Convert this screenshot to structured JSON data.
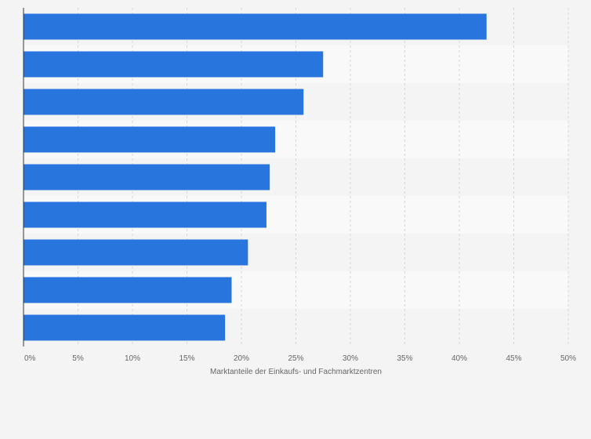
{
  "chart_data": {
    "type": "bar",
    "orientation": "horizontal",
    "categories": [
      "",
      "",
      "",
      "",
      "",
      "",
      "",
      "",
      ""
    ],
    "values": [
      42.5,
      27.5,
      25.7,
      23.1,
      22.6,
      22.3,
      20.6,
      19.1,
      18.5
    ],
    "xlabel": "Marktanteile der Einkaufs- und Fachmarktzentren",
    "ylabel": "",
    "xlim": [
      0,
      50
    ],
    "x_ticks": [
      0,
      5,
      10,
      15,
      20,
      25,
      30,
      35,
      40,
      45,
      50
    ],
    "x_tick_labels": [
      "0%",
      "5%",
      "10%",
      "15%",
      "20%",
      "25%",
      "30%",
      "35%",
      "40%",
      "45%",
      "50%"
    ],
    "grid": "vertical dashed",
    "legend": "none"
  },
  "colors": {
    "bar": "#2876dd",
    "background": "#f4f4f4",
    "band_light": "#f9f9f9",
    "band_dark": "#f4f4f4",
    "grid": "#d6d6d6",
    "axis": "#333333",
    "text": "#666666"
  }
}
